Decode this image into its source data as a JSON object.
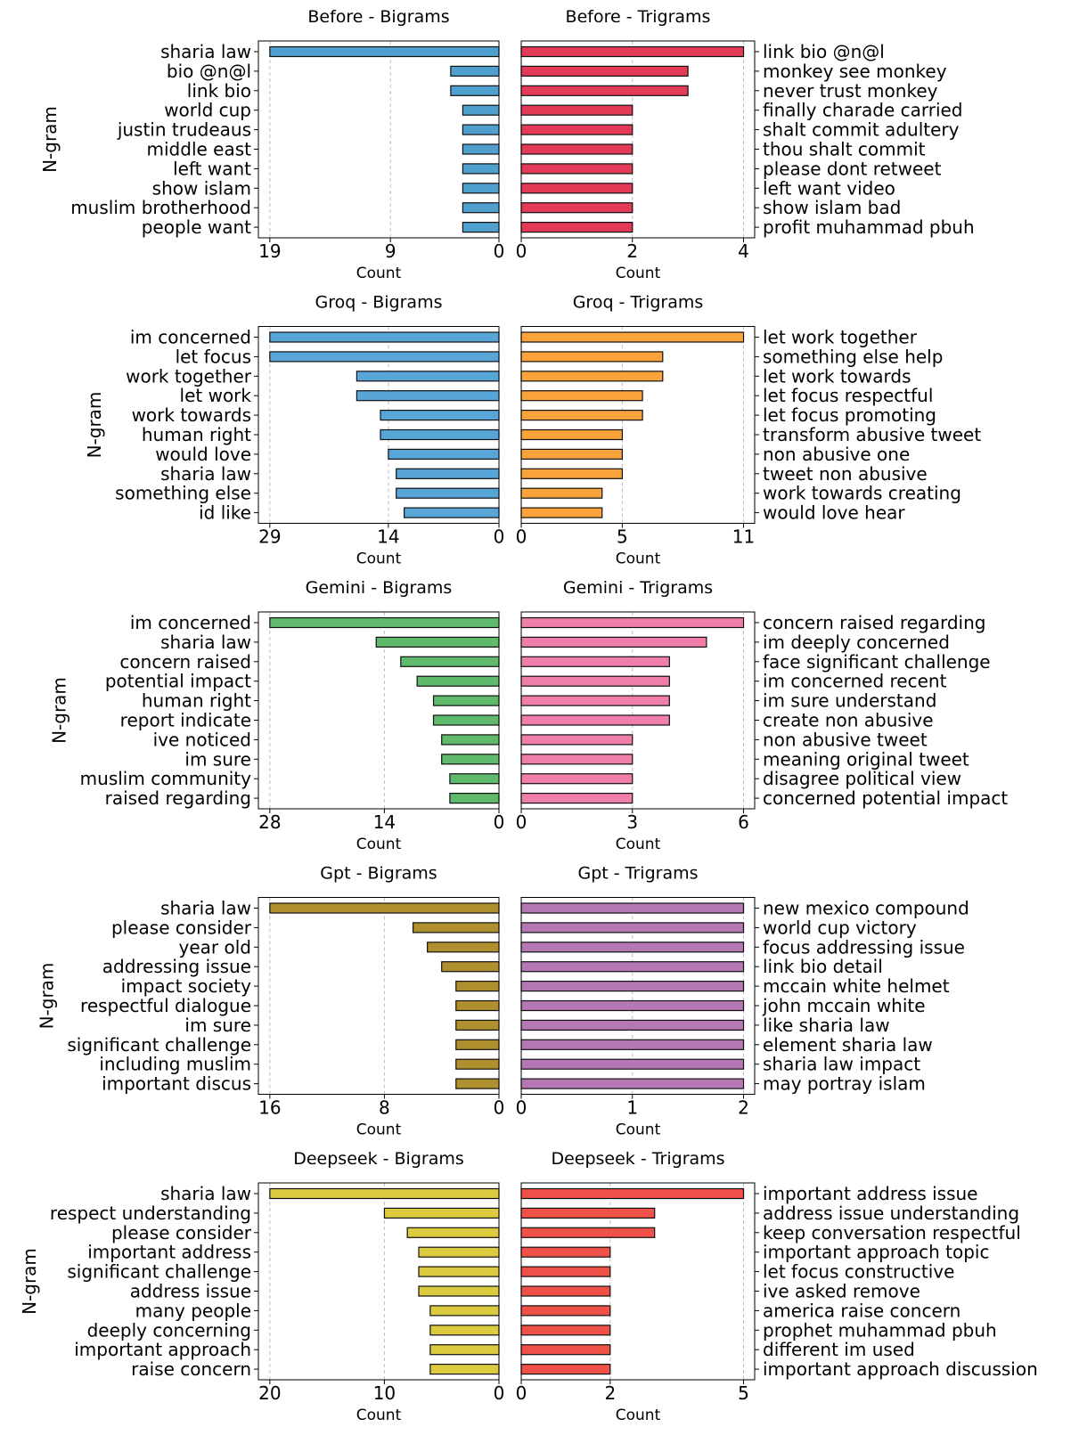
{
  "chart_data": {
    "type": "bar",
    "orientation": "horizontal",
    "layout": "5 rows x 2 columns; bigram panels mirrored (bars grow leftward), trigram labels on the right",
    "grid": "x-axis dashed vertical gridlines",
    "axis_labels": {
      "x": "Count",
      "y": "N-gram"
    },
    "rows": [
      {
        "bigrams": {
          "title": "Before - Bigrams",
          "color": "#4f9fcf",
          "xlim": [
            0,
            19.95
          ],
          "ticks": [
            19,
            9,
            0
          ],
          "categories": [
            "sharia law",
            "bio @n@l",
            "link bio",
            "world cup",
            "justin trudeaus",
            "middle east",
            "left want",
            "show islam",
            "muslim brotherhood",
            "people want"
          ],
          "values": [
            19,
            4,
            4,
            3,
            3,
            3,
            3,
            3,
            3,
            3
          ]
        },
        "trigrams": {
          "title": "Before - Trigrams",
          "color": "#e23a57",
          "xlim": [
            0,
            4.2
          ],
          "ticks": [
            0,
            2,
            4
          ],
          "categories": [
            "link bio @n@l",
            "monkey see monkey",
            "never trust monkey",
            "finally charade carried",
            "shalt commit adultery",
            "thou shalt commit",
            "please dont retweet",
            "left want video",
            "show islam bad",
            "profit muhammad pbuh"
          ],
          "values": [
            4,
            3,
            3,
            2,
            2,
            2,
            2,
            2,
            2,
            2
          ]
        }
      },
      {
        "bigrams": {
          "title": "Groq - Bigrams",
          "color": "#58a5d7",
          "xlim": [
            0,
            30.45
          ],
          "ticks": [
            29,
            14,
            0
          ],
          "categories": [
            "im concerned",
            "let focus",
            "work together",
            "let work",
            "work towards",
            "human right",
            "would love",
            "sharia law",
            "something else",
            "id like"
          ],
          "values": [
            29,
            29,
            18,
            18,
            15,
            15,
            14,
            13,
            13,
            12
          ]
        },
        "trigrams": {
          "title": "Groq - Trigrams",
          "color": "#f9a33a",
          "xlim": [
            0,
            11.55
          ],
          "ticks": [
            0,
            5,
            11
          ],
          "categories": [
            "let work together",
            "something else help",
            "let work towards",
            "let focus respectful",
            "let focus promoting",
            "transform abusive tweet",
            "non abusive one",
            "tweet non abusive",
            "work towards creating",
            "would love hear"
          ],
          "values": [
            11,
            7,
            7,
            6,
            6,
            5,
            5,
            5,
            4,
            4
          ]
        }
      },
      {
        "bigrams": {
          "title": "Gemini - Bigrams",
          "color": "#5fba6c",
          "xlim": [
            0,
            29.4
          ],
          "ticks": [
            28,
            14,
            0
          ],
          "categories": [
            "im concerned",
            "sharia law",
            "concern raised",
            "potential impact",
            "human right",
            "report indicate",
            "ive noticed",
            "im sure",
            "muslim community",
            "raised regarding"
          ],
          "values": [
            28,
            15,
            12,
            10,
            8,
            8,
            7,
            7,
            6,
            6
          ]
        },
        "trigrams": {
          "title": "Gemini - Trigrams",
          "color": "#ef7eab",
          "xlim": [
            0,
            6.3
          ],
          "ticks": [
            0,
            3,
            6
          ],
          "categories": [
            "concern raised regarding",
            "im deeply concerned",
            "face significant challenge",
            "im concerned recent",
            "im sure understand",
            "create non abusive",
            "non abusive tweet",
            "meaning original tweet",
            "disagree political view",
            "concerned potential impact"
          ],
          "values": [
            6,
            5,
            4,
            4,
            4,
            4,
            3,
            3,
            3,
            3
          ]
        }
      },
      {
        "bigrams": {
          "title": "Gpt - Bigrams",
          "color": "#b08f2f",
          "xlim": [
            0,
            16.8
          ],
          "ticks": [
            16,
            8,
            0
          ],
          "categories": [
            "sharia law",
            "please consider",
            "year old",
            "addressing issue",
            "impact society",
            "respectful dialogue",
            "im sure",
            "significant challenge",
            "including muslim",
            "important discus"
          ],
          "values": [
            16,
            6,
            5,
            4,
            3,
            3,
            3,
            3,
            3,
            3
          ]
        },
        "trigrams": {
          "title": "Gpt - Trigrams",
          "color": "#b677b5",
          "xlim": [
            0,
            2.1
          ],
          "ticks": [
            0,
            1,
            2
          ],
          "categories": [
            "new mexico compound",
            "world cup victory",
            "focus addressing issue",
            "link bio detail",
            "mccain white helmet",
            "john mccain white",
            "like sharia law",
            "element sharia law",
            "sharia law impact",
            "may portray islam"
          ],
          "values": [
            2,
            2,
            2,
            2,
            2,
            2,
            2,
            2,
            2,
            2
          ]
        }
      },
      {
        "bigrams": {
          "title": "Deepseek - Bigrams",
          "color": "#dccb3e",
          "xlim": [
            0,
            21
          ],
          "ticks": [
            20,
            10,
            0
          ],
          "categories": [
            "sharia law",
            "respect understanding",
            "please consider",
            "important address",
            "significant challenge",
            "address issue",
            "many people",
            "deeply concerning",
            "important approach",
            "raise concern"
          ],
          "values": [
            20,
            10,
            8,
            7,
            7,
            7,
            6,
            6,
            6,
            6
          ]
        },
        "trigrams": {
          "title": "Deepseek - Trigrams",
          "color": "#ef5048",
          "xlim": [
            0,
            5.25
          ],
          "ticks": [
            0,
            2,
            5
          ],
          "categories": [
            "important address issue",
            "address issue understanding",
            "keep conversation respectful",
            "important approach topic",
            "let focus constructive",
            "ive asked remove",
            "america raise concern",
            "prophet muhammad pbuh",
            "different im used",
            "important approach discussion"
          ],
          "values": [
            5,
            3,
            3,
            2,
            2,
            2,
            2,
            2,
            2,
            2
          ]
        }
      }
    ]
  }
}
